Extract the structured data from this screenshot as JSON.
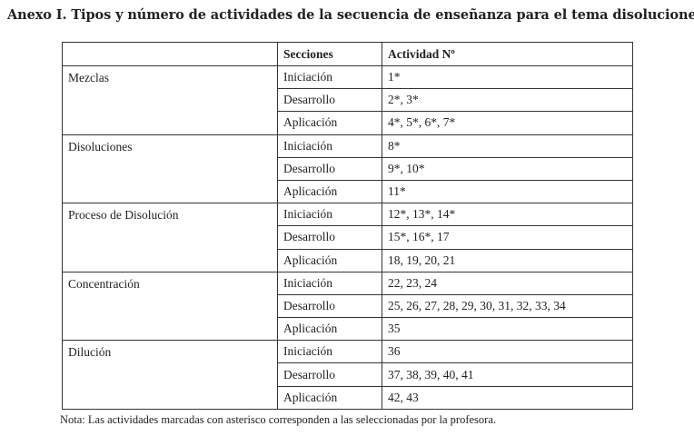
{
  "title": "Anexo I. Tipos y número de actividades de la secuencia de enseñanza para el tema disoluciones",
  "headers": [
    "",
    "Secciones",
    "Actividad Nº"
  ],
  "groups": [
    {
      "theme": "Mezclas",
      "rows": [
        [
          "Iniciación",
          "1*"
        ],
        [
          "Desarrollo",
          "2*, 3*"
        ],
        [
          "Aplicación",
          "4*, 5*, 6*, 7*"
        ]
      ]
    },
    {
      "theme": "Disoluciones",
      "rows": [
        [
          "Iniciación",
          "8*"
        ],
        [
          "Desarrollo",
          "9*, 10*"
        ],
        [
          "Aplicación",
          "11*"
        ]
      ]
    },
    {
      "theme": "Proceso de Disolución",
      "rows": [
        [
          "Iniciación",
          "12*, 13*, 14*"
        ],
        [
          "Desarrollo",
          "15*, 16*, 17"
        ],
        [
          "Aplicación",
          "18, 19, 20, 21"
        ]
      ]
    },
    {
      "theme": "Concentración",
      "rows": [
        [
          "Iniciación",
          "22, 23, 24"
        ],
        [
          "Desarrollo",
          "25, 26, 27, 28, 29, 30, 31, 32, 33, 34"
        ],
        [
          "Aplicación",
          "35"
        ]
      ]
    },
    {
      "theme": "Dilución",
      "rows": [
        [
          "Iniciación",
          "36"
        ],
        [
          "Desarrollo",
          "37, 38, 39, 40, 41"
        ],
        [
          "Aplicación",
          "42, 43"
        ]
      ]
    }
  ],
  "note": "Nota: Las actividades marcadas con asterisco corresponden a las seleccionadas por la profesora."
}
